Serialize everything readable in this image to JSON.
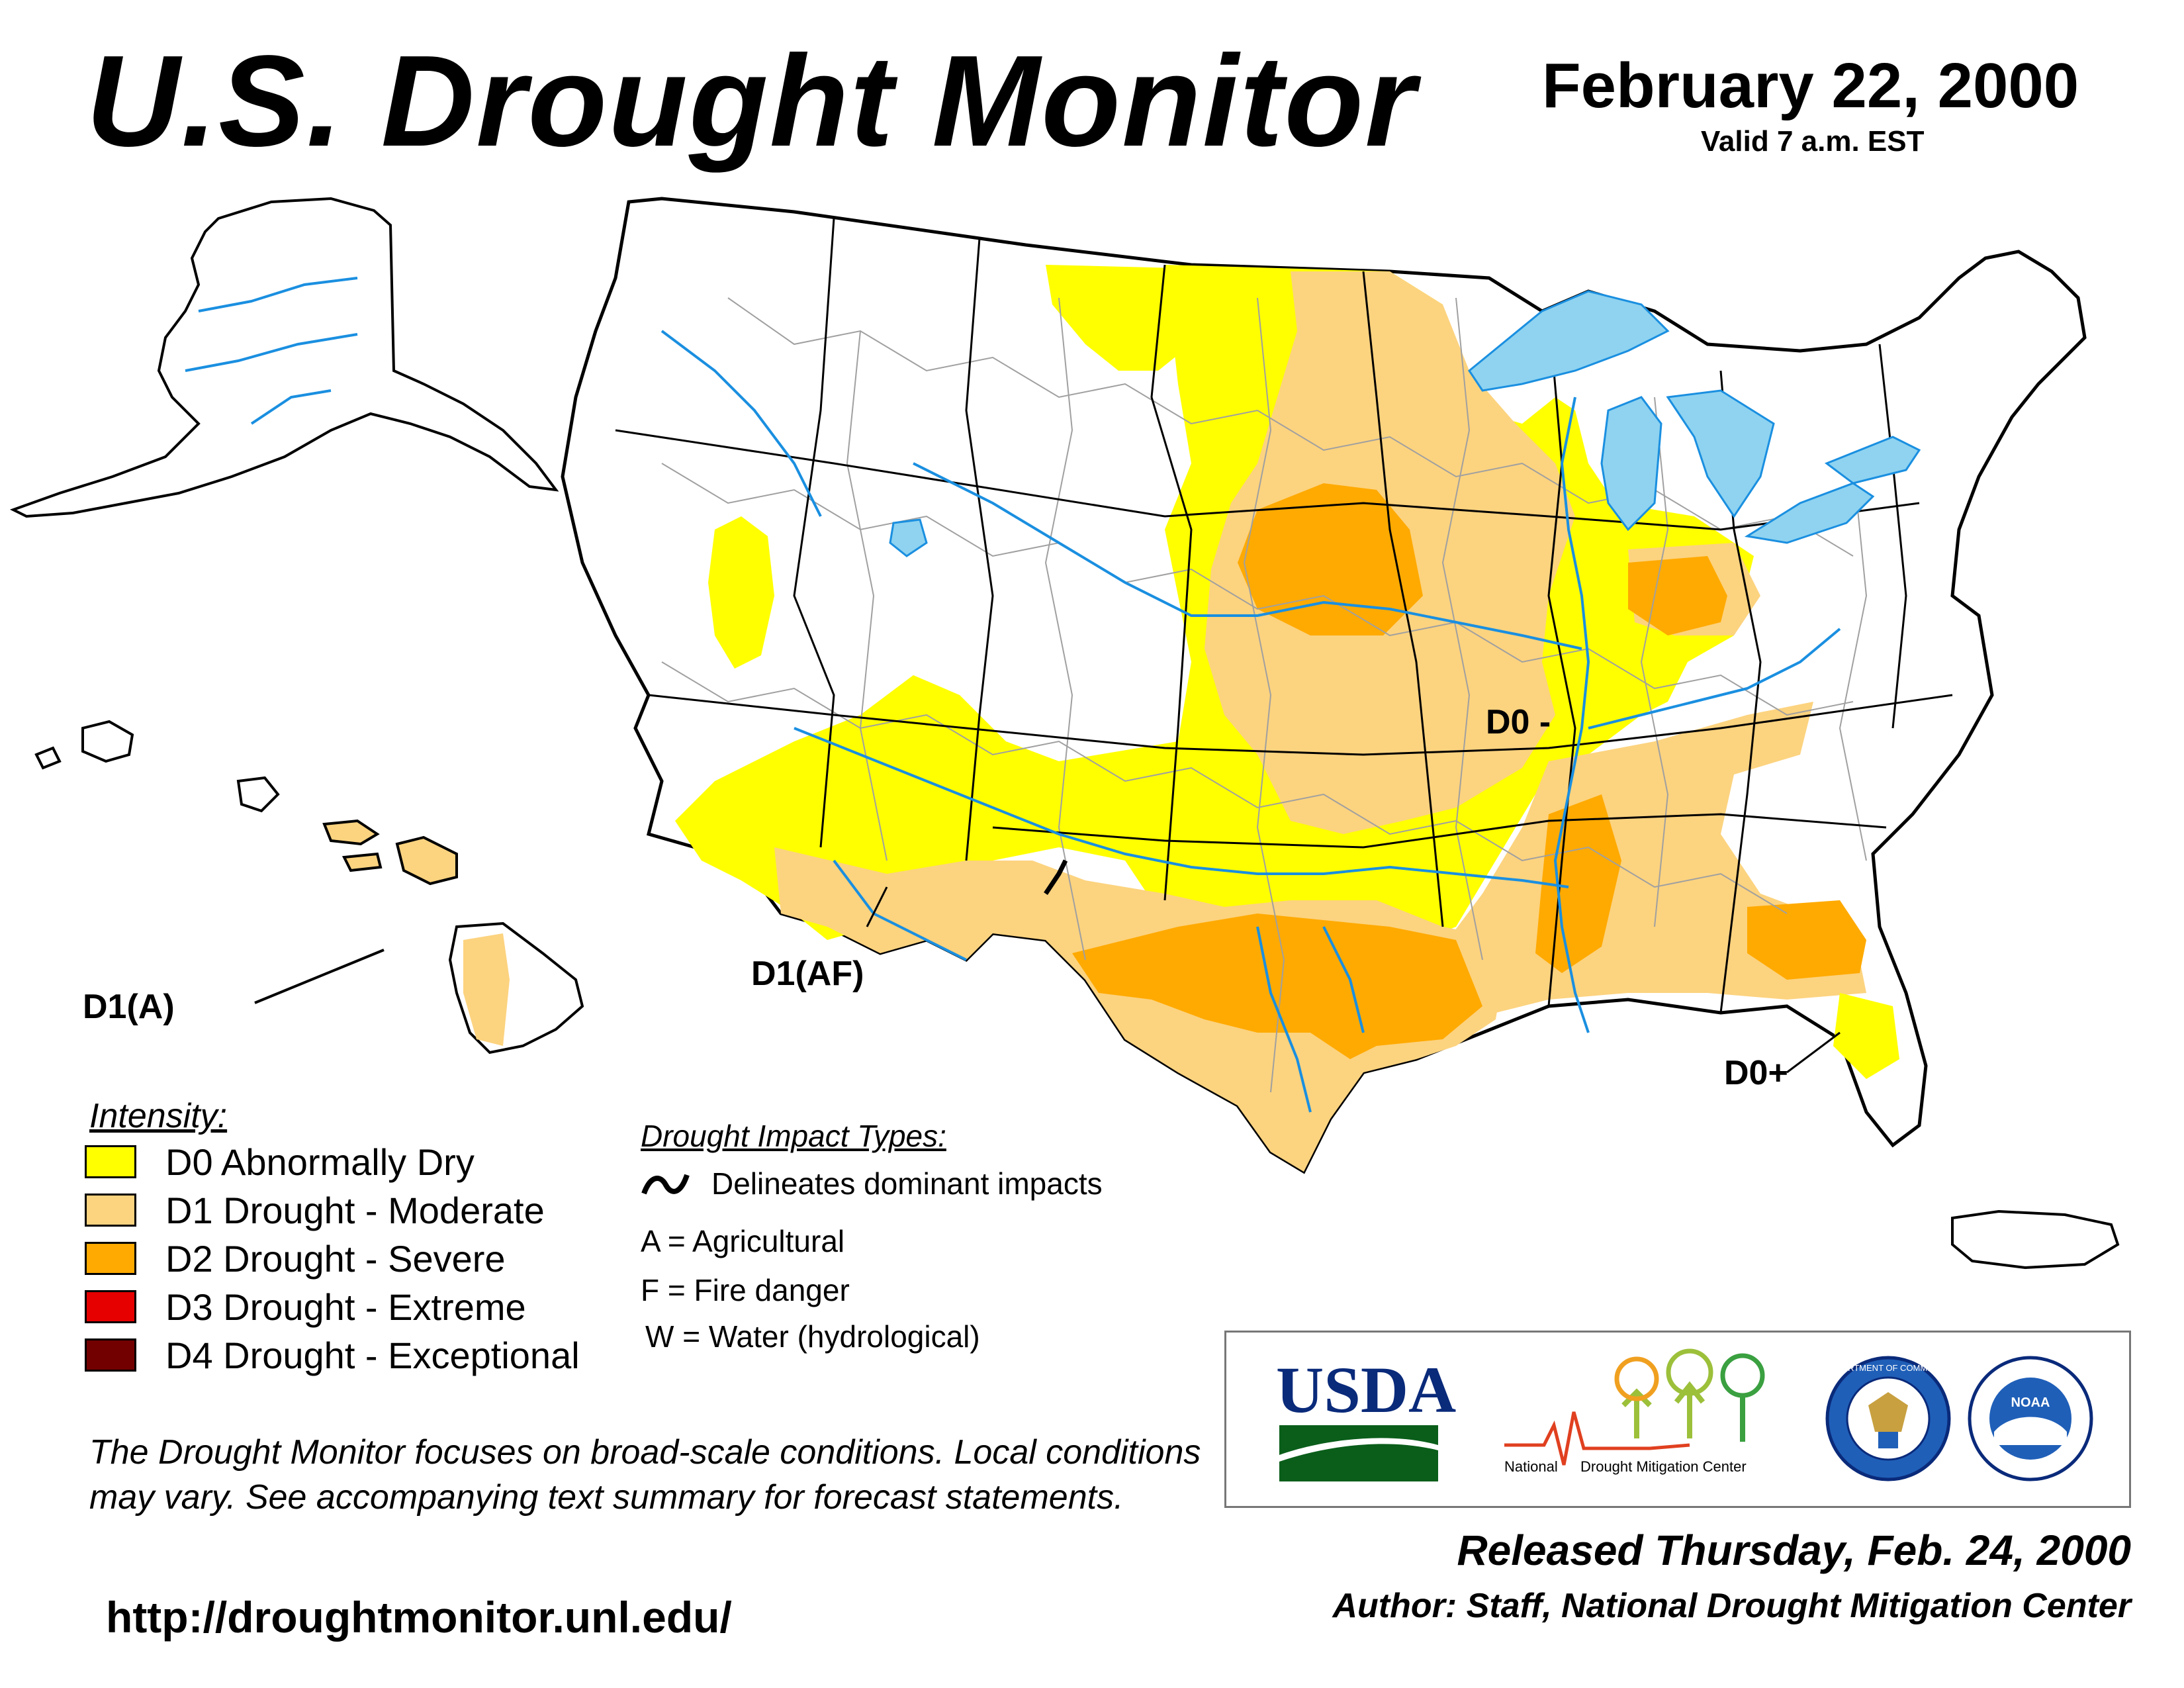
{
  "header": {
    "title": "U.S. Drought Monitor",
    "date": "February 22, 2000",
    "valid": "Valid 7 a.m. EST"
  },
  "map": {
    "labels": {
      "d1a": "D1(A)",
      "d1af": "D1(AF)",
      "d0minus": "D0 -",
      "d0plus": "D0+"
    },
    "colors": {
      "water": "#8fd3f0",
      "river": "#1a8fe0",
      "county_border": "#a0a0a0",
      "state_border": "#000000"
    }
  },
  "legend": {
    "heading": "Intensity:",
    "items": [
      {
        "label": "D0 Abnormally Dry",
        "color": "#ffff00"
      },
      {
        "label": "D1 Drought - Moderate",
        "color": "#fcd37f"
      },
      {
        "label": "D2 Drought - Severe",
        "color": "#ffaa00"
      },
      {
        "label": "D3 Drought - Extreme",
        "color": "#e60000"
      },
      {
        "label": "D4 Drought - Exceptional",
        "color": "#730000"
      }
    ]
  },
  "impacts": {
    "heading": "Drought Impact Types:",
    "delineates": "Delineates dominant impacts",
    "types": [
      "A = Agricultural",
      "F = Fire danger",
      "W = Water (hydrological)"
    ]
  },
  "disclaimer": "The Drought Monitor focuses on broad-scale conditions. Local conditions may vary. See accompanying text summary for forecast statements.",
  "url": "http://droughtmonitor.unl.edu/",
  "logos": {
    "usda": "USDA",
    "ndmc_a": "National",
    "ndmc_b": "Drought Mitigation Center",
    "doc": "DEPARTMENT OF COMMERCE",
    "noaa": "NOAA"
  },
  "footer": {
    "released": "Released Thursday, Feb. 24, 2000",
    "author": "Author: Staff, National Drought Mitigation Center"
  }
}
